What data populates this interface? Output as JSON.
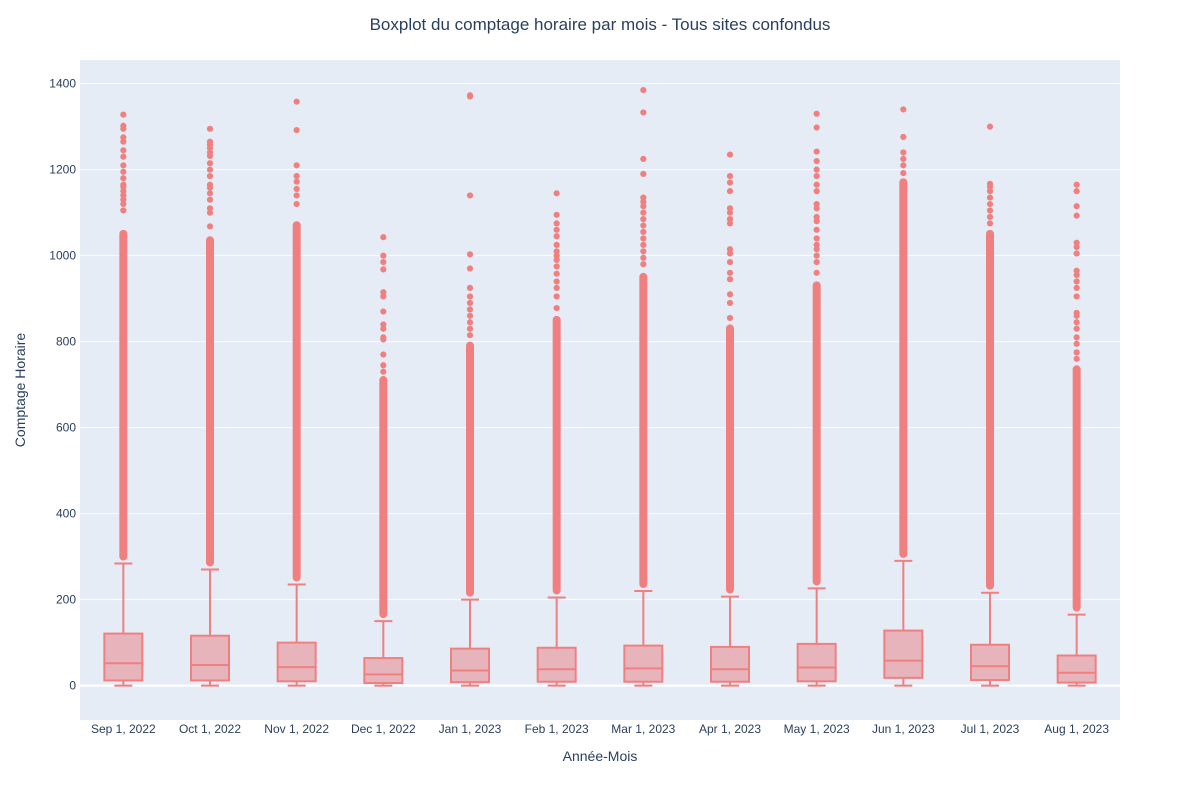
{
  "chart_data": {
    "type": "box",
    "title": "Boxplot du comptage horaire par mois - Tous sites confondus",
    "xlabel": "Année-Mois",
    "ylabel": "Comptage Horaire",
    "ylim": [
      -80,
      1455
    ],
    "yticks": [
      0,
      200,
      400,
      600,
      800,
      1000,
      1200,
      1400
    ],
    "grid": true,
    "colors": {
      "plot_bg": "#e5ecf6",
      "grid": "#ffffff",
      "box_fill": "#e8b4bc",
      "box_line": "#f08080",
      "text": "#2a3f5f"
    },
    "categories": [
      "Sep 1, 2022",
      "Oct 1, 2022",
      "Nov 1, 2022",
      "Dec 1, 2022",
      "Jan 1, 2023",
      "Feb 1, 2023",
      "Mar 1, 2023",
      "Apr 1, 2023",
      "May 1, 2023",
      "Jun 1, 2023",
      "Jul 1, 2023",
      "Aug 1, 2023"
    ],
    "boxes": [
      {
        "min": 0,
        "q1": 12,
        "median": 52,
        "q3": 121,
        "upper_fence": 284,
        "dense_outlier_max": 1060,
        "outliers": [
          1105,
          1120,
          1130,
          1140,
          1150,
          1160,
          1165,
          1180,
          1195,
          1210,
          1230,
          1245,
          1265,
          1275,
          1295,
          1302,
          1328
        ]
      },
      {
        "min": 0,
        "q1": 12,
        "median": 48,
        "q3": 116,
        "upper_fence": 270,
        "dense_outlier_max": 1045,
        "outliers": [
          1068,
          1100,
          1110,
          1130,
          1145,
          1158,
          1165,
          1185,
          1200,
          1215,
          1232,
          1240,
          1250,
          1258,
          1265,
          1295
        ]
      },
      {
        "min": 0,
        "q1": 10,
        "median": 43,
        "q3": 100,
        "upper_fence": 235,
        "dense_outlier_max": 1080,
        "outliers": [
          1120,
          1140,
          1155,
          1172,
          1185,
          1210,
          1292,
          1358
        ]
      },
      {
        "min": 0,
        "q1": 6,
        "median": 26,
        "q3": 64,
        "upper_fence": 150,
        "dense_outlier_max": 720,
        "outliers": [
          730,
          745,
          770,
          805,
          810,
          830,
          840,
          870,
          905,
          915,
          968,
          985,
          1000,
          1043
        ]
      },
      {
        "min": 0,
        "q1": 8,
        "median": 35,
        "q3": 86,
        "upper_fence": 200,
        "dense_outlier_max": 800,
        "outliers": [
          815,
          830,
          845,
          860,
          875,
          890,
          905,
          925,
          970,
          1003,
          1140,
          1370,
          1373
        ]
      },
      {
        "min": 0,
        "q1": 9,
        "median": 38,
        "q3": 88,
        "upper_fence": 205,
        "dense_outlier_max": 860,
        "outliers": [
          878,
          905,
          925,
          940,
          958,
          975,
          990,
          1000,
          1010,
          1025,
          1045,
          1060,
          1075,
          1095,
          1145
        ]
      },
      {
        "min": 0,
        "q1": 9,
        "median": 40,
        "q3": 93,
        "upper_fence": 220,
        "dense_outlier_max": 960,
        "outliers": [
          980,
          995,
          1010,
          1025,
          1040,
          1055,
          1070,
          1085,
          1100,
          1115,
          1125,
          1135,
          1190,
          1225,
          1333,
          1385
        ]
      },
      {
        "min": 0,
        "q1": 9,
        "median": 38,
        "q3": 90,
        "upper_fence": 207,
        "dense_outlier_max": 840,
        "outliers": [
          855,
          890,
          910,
          945,
          960,
          985,
          1005,
          1015,
          1075,
          1085,
          1100,
          1110,
          1150,
          1170,
          1185,
          1235
        ]
      },
      {
        "min": 0,
        "q1": 10,
        "median": 42,
        "q3": 97,
        "upper_fence": 226,
        "dense_outlier_max": 940,
        "outliers": [
          960,
          985,
          1000,
          1015,
          1025,
          1040,
          1060,
          1080,
          1090,
          1110,
          1120,
          1150,
          1165,
          1185,
          1200,
          1220,
          1242,
          1298,
          1330
        ]
      },
      {
        "min": 0,
        "q1": 18,
        "median": 58,
        "q3": 128,
        "upper_fence": 290,
        "dense_outlier_max": 1180,
        "outliers": [
          1192,
          1210,
          1225,
          1240,
          1276,
          1340
        ]
      },
      {
        "min": 0,
        "q1": 13,
        "median": 45,
        "q3": 95,
        "upper_fence": 216,
        "dense_outlier_max": 1060,
        "outliers": [
          1075,
          1090,
          1105,
          1120,
          1135,
          1150,
          1160,
          1167,
          1300
        ]
      },
      {
        "min": 0,
        "q1": 7,
        "median": 30,
        "q3": 70,
        "upper_fence": 165,
        "dense_outlier_max": 745,
        "outliers": [
          760,
          775,
          795,
          810,
          830,
          845,
          860,
          867,
          905,
          925,
          940,
          955,
          965,
          1005,
          1020,
          1030,
          1093,
          1115,
          1150,
          1165
        ]
      }
    ]
  }
}
